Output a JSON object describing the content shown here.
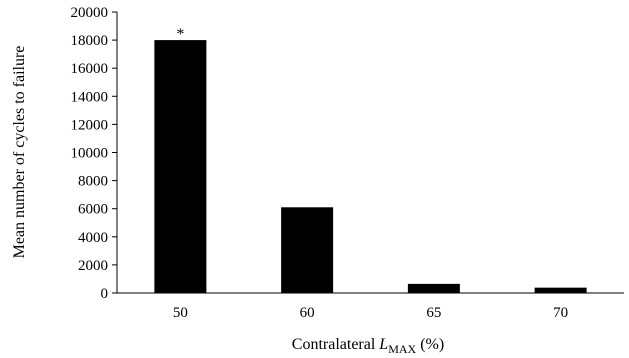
{
  "chart_data": {
    "type": "bar",
    "categories": [
      "50",
      "60",
      "65",
      "70"
    ],
    "values": [
      18000,
      6100,
      650,
      380
    ],
    "annotations": [
      {
        "category": "50",
        "text": "*"
      }
    ],
    "ylabel": "Mean number of cycles to failure",
    "xlabel": {
      "prefix": "Contralateral ",
      "symbol": "L",
      "subscript": "MAX",
      "suffix": " (%)"
    },
    "ylim": [
      0,
      20000
    ],
    "yticks": [
      0,
      2000,
      4000,
      6000,
      8000,
      10000,
      12000,
      14000,
      16000,
      18000,
      20000
    ],
    "grid": false,
    "legend": "none",
    "bar_color": "#000000"
  }
}
